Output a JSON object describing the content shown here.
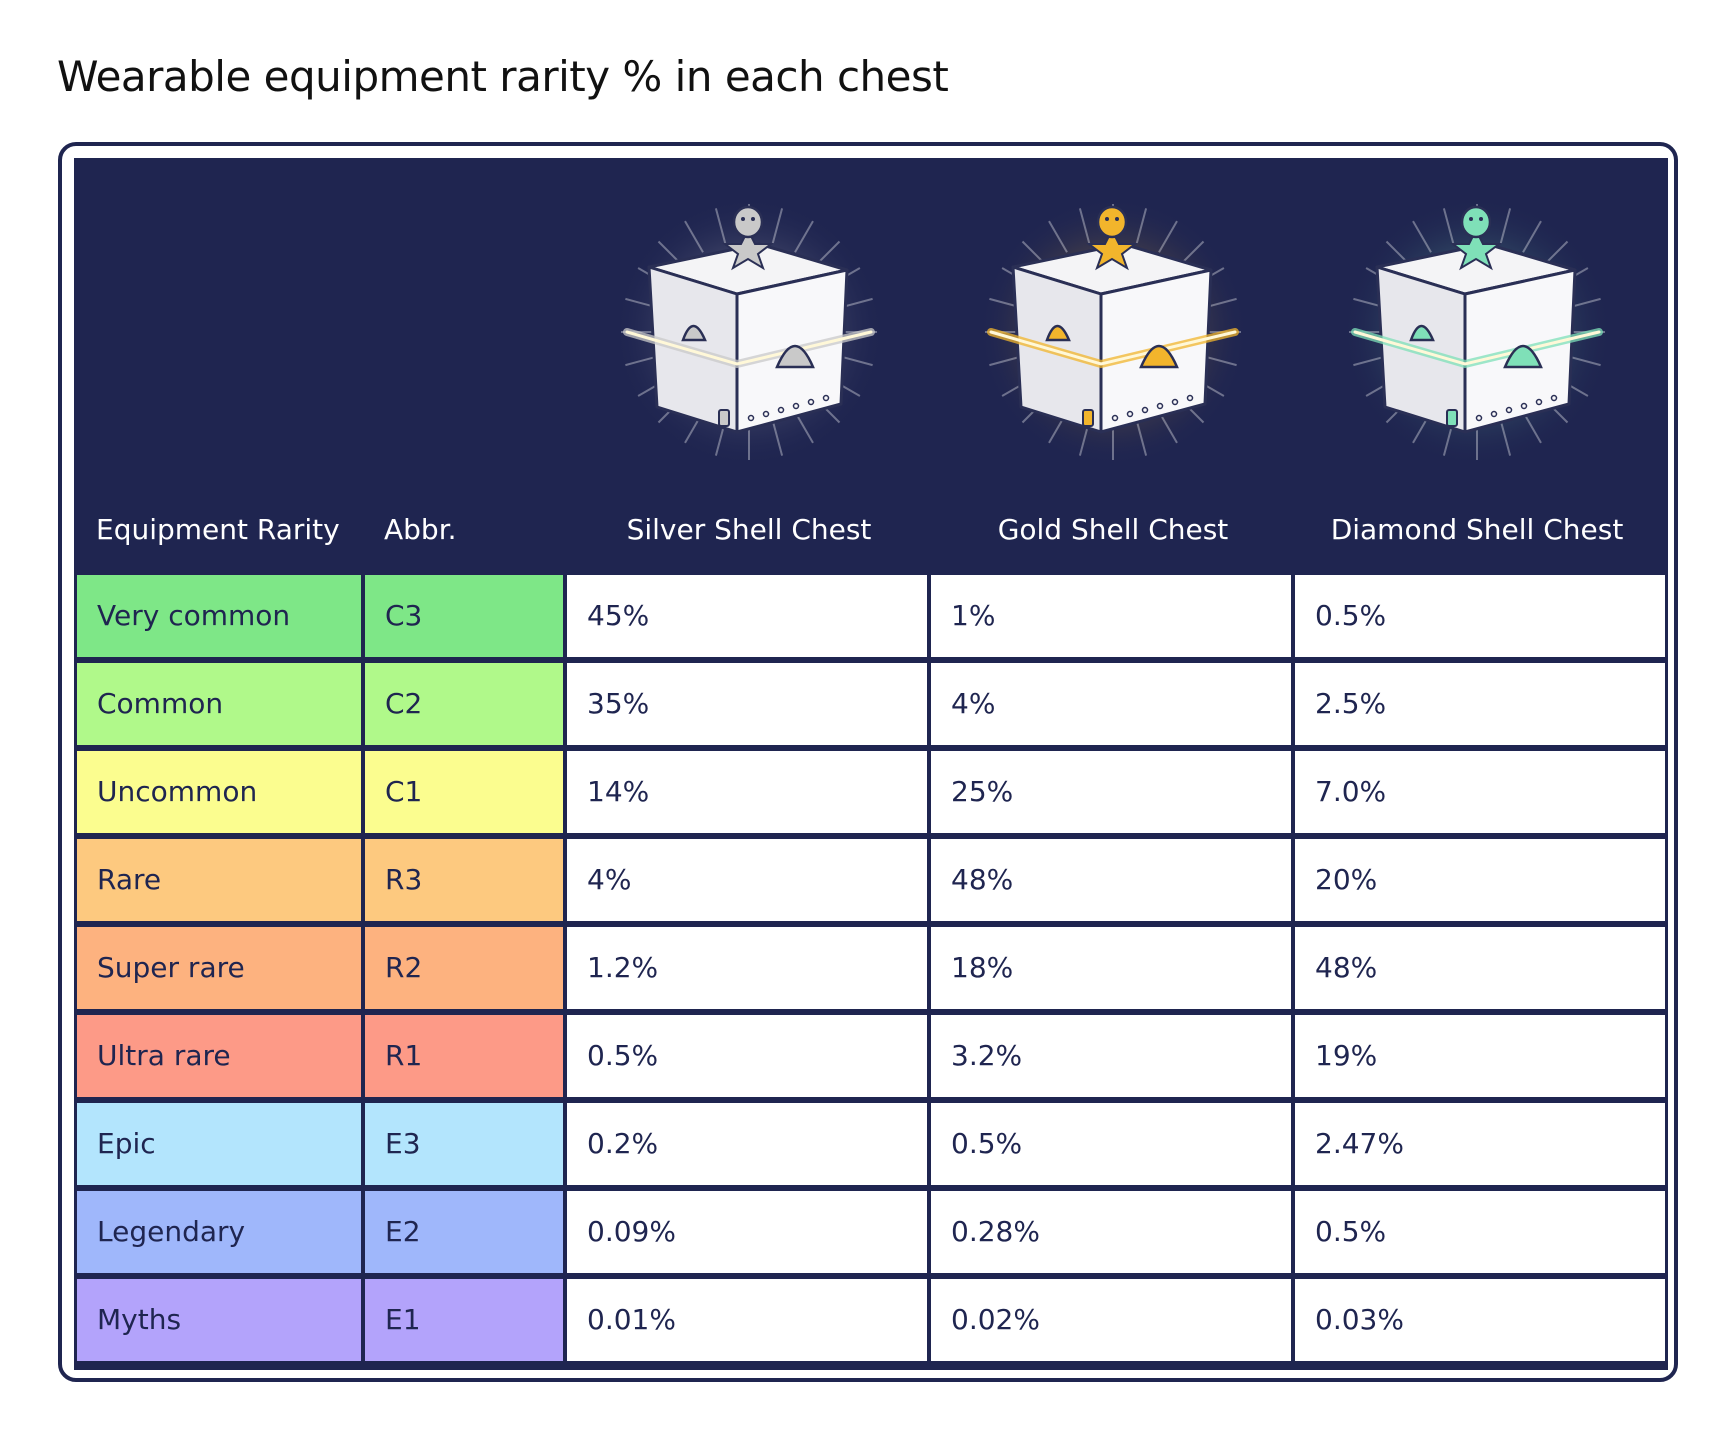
{
  "title": "Wearable equipment rarity % in each chest",
  "header": {
    "rarity_label": "Equipment Rarity",
    "abbr_label": "Abbr.",
    "chests": [
      {
        "name": "Silver Shell Chest",
        "accent": "#c9c9c9"
      },
      {
        "name": "Gold Shell Chest",
        "accent": "#f2b52c"
      },
      {
        "name": "Diamond Shell Chest",
        "accent": "#7fe0b8"
      }
    ]
  },
  "colors": {
    "header_bg": "#1f2550",
    "grid_line": "#1f2550"
  },
  "rows": [
    {
      "rarity": "Very common",
      "abbr": "C3",
      "color": "#7ee787",
      "values": [
        "45%",
        "1%",
        "0.5%"
      ]
    },
    {
      "rarity": "Common",
      "abbr": "C2",
      "color": "#b0f98a",
      "values": [
        "35%",
        "4%",
        "2.5%"
      ]
    },
    {
      "rarity": "Uncommon",
      "abbr": "C1",
      "color": "#fbfd8f",
      "values": [
        "14%",
        "25%",
        "7.0%"
      ]
    },
    {
      "rarity": "Rare",
      "abbr": "R3",
      "color": "#fdc97f",
      "values": [
        "4%",
        "48%",
        "20%"
      ]
    },
    {
      "rarity": "Super rare",
      "abbr": "R2",
      "color": "#fdb27f",
      "values": [
        "1.2%",
        "18%",
        "48%"
      ]
    },
    {
      "rarity": "Ultra rare",
      "abbr": "R1",
      "color": "#fd9a87",
      "values": [
        "0.5%",
        "3.2%",
        "19%"
      ]
    },
    {
      "rarity": "Epic",
      "abbr": "E3",
      "color": "#b3e5fd",
      "values": [
        "0.2%",
        "0.5%",
        "2.47%"
      ]
    },
    {
      "rarity": "Legendary",
      "abbr": "E2",
      "color": "#9fb7fb",
      "values": [
        "0.09%",
        "0.28%",
        "0.5%"
      ]
    },
    {
      "rarity": "Myths",
      "abbr": "E1",
      "color": "#b3a3fb",
      "values": [
        "0.01%",
        "0.02%",
        "0.03%"
      ]
    }
  ]
}
